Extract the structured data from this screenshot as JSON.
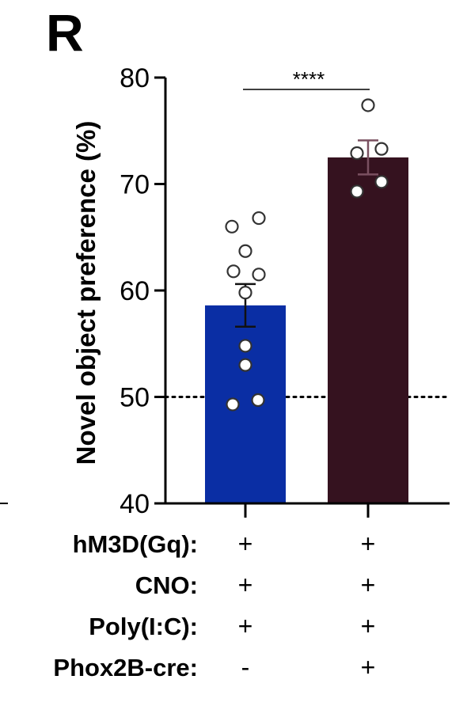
{
  "panel_label": "R",
  "chart_data": {
    "type": "bar",
    "ylabel": "Novel object preference (%)",
    "ylim": [
      40,
      80
    ],
    "yticks": [
      40,
      50,
      60,
      70,
      80
    ],
    "reference_line": 50,
    "significance": "****",
    "groups": [
      {
        "value": 58.6,
        "sem": 2.0,
        "color": "#0a2ea4",
        "points": [
          66.0,
          66.8,
          63.7,
          61.8,
          61.5,
          59.8,
          54.8,
          53.0,
          49.3,
          49.7
        ]
      },
      {
        "value": 72.5,
        "sem": 1.6,
        "color": "#35121f",
        "points": [
          77.4,
          72.9,
          73.3,
          69.3,
          70.2
        ]
      }
    ],
    "conditions": [
      {
        "label": "hM3D(Gq):",
        "values": [
          "+",
          "+"
        ]
      },
      {
        "label": "CNO:",
        "values": [
          "+",
          "+"
        ]
      },
      {
        "label": "Poly(I:C):",
        "values": [
          "+",
          "+"
        ]
      },
      {
        "label": "Phox2B-cre:",
        "values": [
          "-",
          "+"
        ]
      }
    ]
  }
}
